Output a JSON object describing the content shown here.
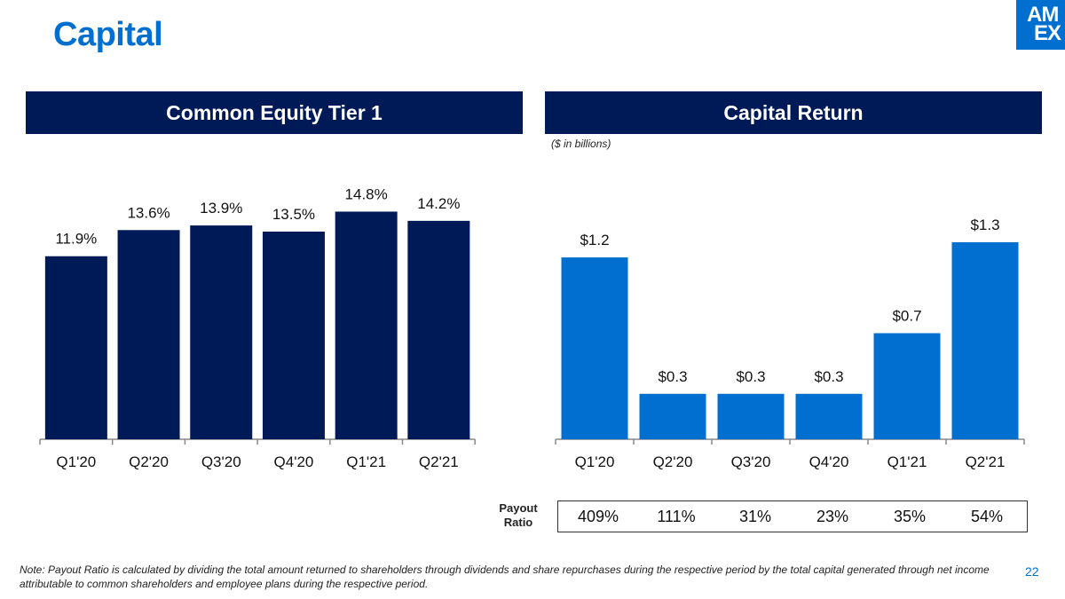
{
  "page": {
    "title": "Capital",
    "page_number": "22",
    "note": "Note: Payout Ratio is calculated by dividing the total amount returned to shareholders through dividends and share repurchases during the respective period by the total capital generated through net income attributable to common shareholders and employee plans during the respective period."
  },
  "logo": {
    "line1": "AM",
    "line2": "EX",
    "color": "#006fcf"
  },
  "left_panel": {
    "header": "Common Equity Tier 1"
  },
  "right_panel": {
    "header": "Capital Return",
    "units": "($ in billions)"
  },
  "payout": {
    "label_line1": "Payout",
    "label_line2": "Ratio",
    "values": [
      "409%",
      "111%",
      "31%",
      "23%",
      "35%",
      "54%"
    ]
  },
  "chart_data": [
    {
      "type": "bar",
      "title": "Common Equity Tier 1",
      "categories": [
        "Q1'20",
        "Q2'20",
        "Q3'20",
        "Q4'20",
        "Q1'21",
        "Q2'21"
      ],
      "values": [
        11.9,
        13.6,
        13.9,
        13.5,
        14.8,
        14.2
      ],
      "data_labels": [
        "11.9%",
        "13.6%",
        "13.9%",
        "13.5%",
        "14.8%",
        "14.2%"
      ],
      "ylim": [
        0,
        15
      ],
      "grid": false,
      "color": "#001a57"
    },
    {
      "type": "bar",
      "title": "Capital Return",
      "subtitle": "($ in billions)",
      "categories": [
        "Q1'20",
        "Q2'20",
        "Q3'20",
        "Q4'20",
        "Q1'21",
        "Q2'21"
      ],
      "values": [
        1.2,
        0.3,
        0.3,
        0.3,
        0.7,
        1.3
      ],
      "data_labels": [
        "$1.2",
        "$0.3",
        "$0.3",
        "$0.3",
        "$0.7",
        "$1.3"
      ],
      "ylim": [
        0,
        1.3
      ],
      "grid": false,
      "color": "#006fcf"
    }
  ]
}
